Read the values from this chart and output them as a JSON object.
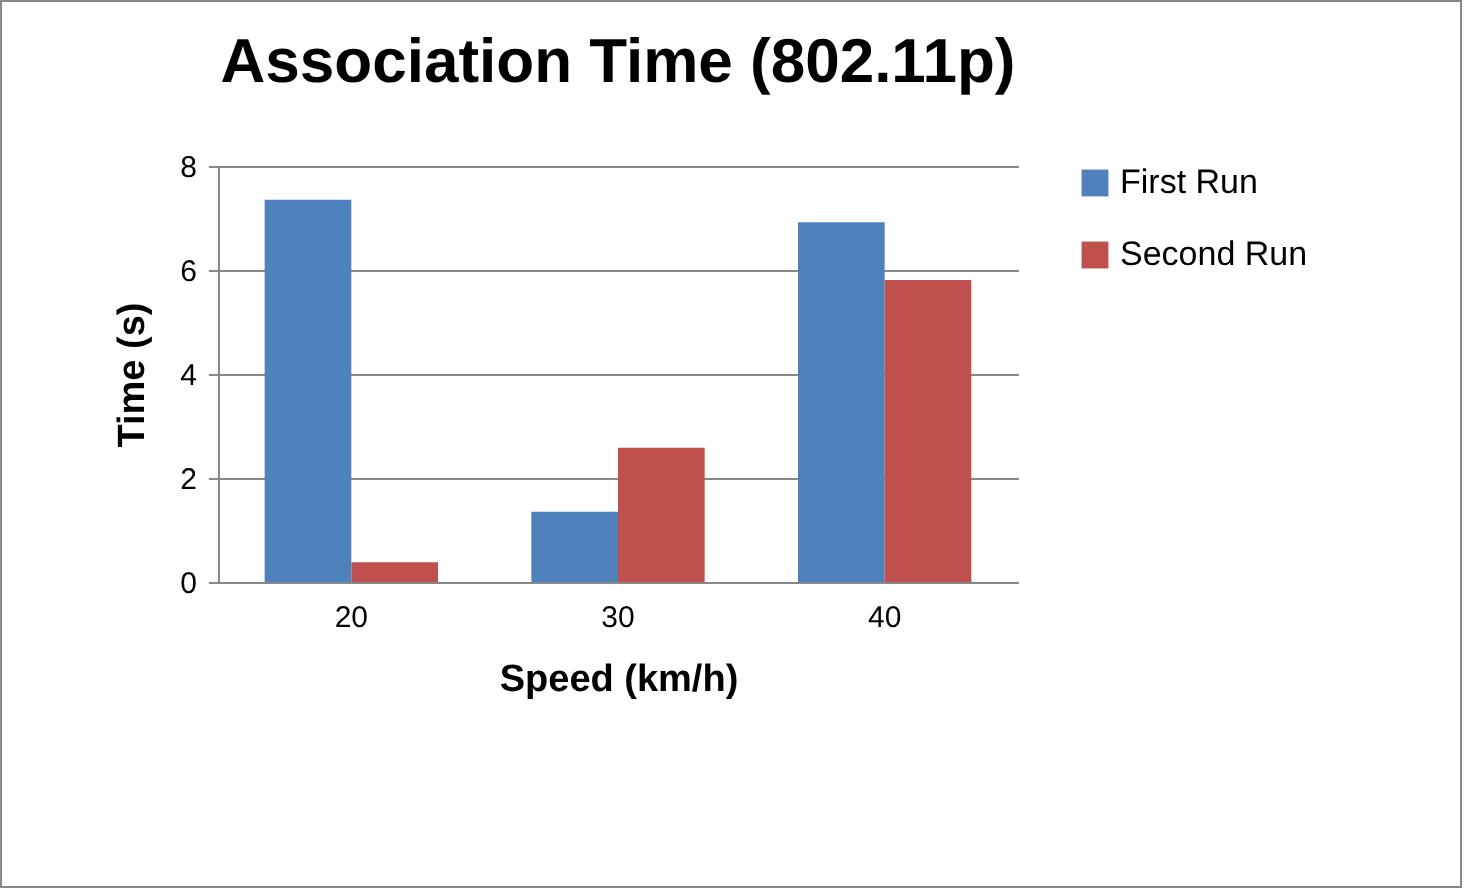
{
  "chart_data": {
    "type": "bar",
    "title": "Association Time (802.11p)",
    "xlabel": "Speed (km/h)",
    "ylabel": "Time (s)",
    "categories": [
      "20",
      "30",
      "40"
    ],
    "series": [
      {
        "name": "First Run",
        "color": "#4f81bd",
        "values": [
          7.35,
          1.35,
          6.92
        ]
      },
      {
        "name": "Second Run",
        "color": "#c0504d",
        "values": [
          0.38,
          2.58,
          5.81
        ]
      }
    ],
    "ylim": [
      0,
      8
    ],
    "yticks": [
      0,
      2,
      4,
      6,
      8
    ],
    "grid": "y",
    "legend": "right"
  }
}
